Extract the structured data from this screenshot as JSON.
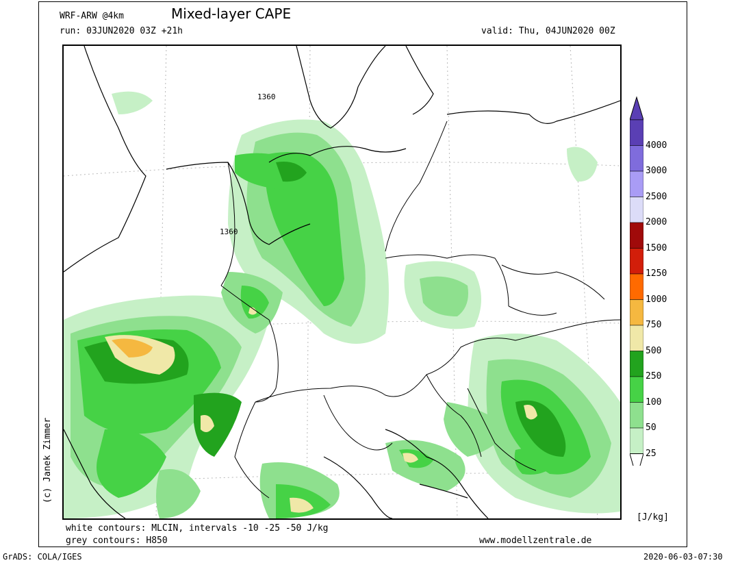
{
  "header": {
    "model": "WRF-ARW @4km",
    "title": "Mixed-layer CAPE",
    "run": "run: 03JUN2020 03Z +21h",
    "valid": "valid: Thu, 04JUN2020 00Z"
  },
  "map": {
    "contour_labels": [
      "1360",
      "1360"
    ]
  },
  "colorbar": {
    "unit": "[J/kg]",
    "levels": [
      {
        "label": "4000",
        "color": "#5a3fb4"
      },
      {
        "label": "3000",
        "color": "#7f6cdc"
      },
      {
        "label": "2500",
        "color": "#a99cf5"
      },
      {
        "label": "2000",
        "color": "#dcdcf8"
      },
      {
        "label": "1500",
        "color": "#a00a0a"
      },
      {
        "label": "1250",
        "color": "#d21e0a"
      },
      {
        "label": "1000",
        "color": "#ff6a00"
      },
      {
        "label": "750",
        "color": "#f5b840"
      },
      {
        "label": "500",
        "color": "#f0e8a8"
      },
      {
        "label": "250",
        "color": "#22a31e"
      },
      {
        "label": "100",
        "color": "#46d246"
      },
      {
        "label": "50",
        "color": "#8ee08e"
      },
      {
        "label": "25",
        "color": "#c6f0c6"
      }
    ],
    "low_color": "#ffffff"
  },
  "legend": {
    "white_contours": "white contours: MLCIN, intervals -10 -25 -50 J/kg",
    "grey_contours": "grey contours: H850",
    "website": "www.modellzentrale.de"
  },
  "credit": "(c) Janek Zimmer",
  "footer": {
    "grads": "GrADS: COLA/IGES",
    "timestamp": "2020-06-03-07:30"
  }
}
